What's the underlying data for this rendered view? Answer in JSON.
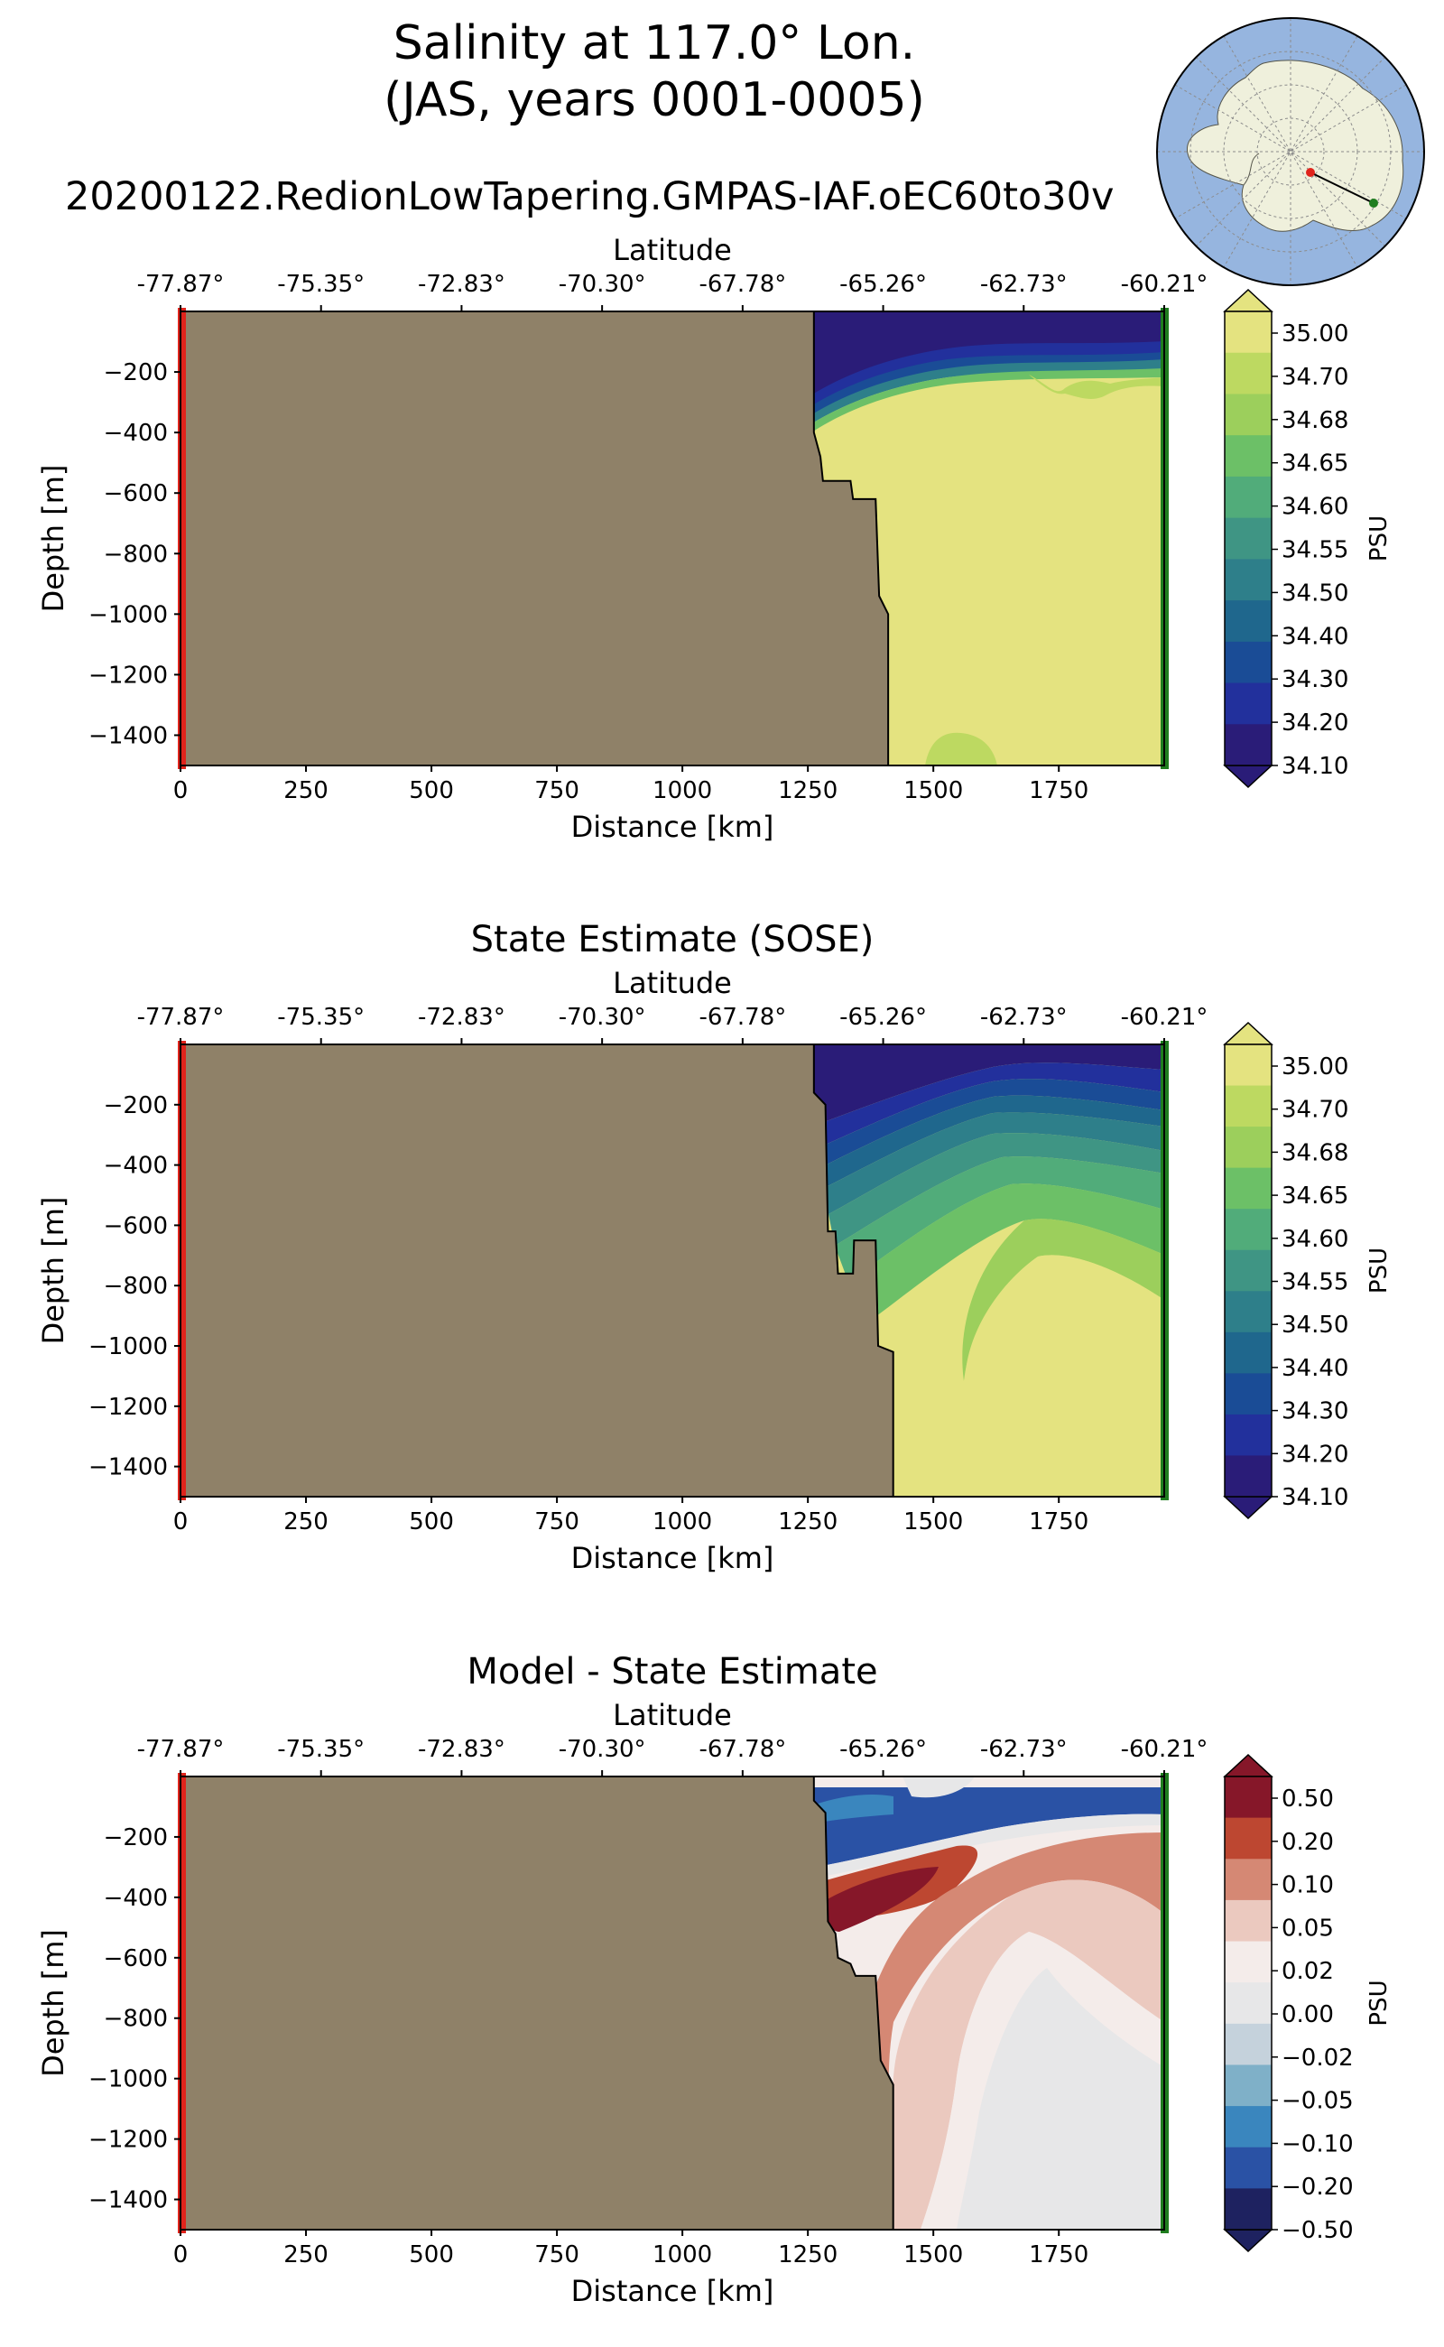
{
  "figure": {
    "title_line1": "Salinity at 117.0° Lon.",
    "title_line2": "(JAS, years 0001-0005)",
    "run_name": "20200122.RedionLowTapering.GMPAS-IAF.oEC60to30v"
  },
  "chart_data": [
    {
      "type": "heatmap",
      "title": "",
      "xlabel": "Distance [km]",
      "ylabel": "Depth [m]",
      "top_xlabel": "Latitude",
      "xlim": [
        0,
        1960
      ],
      "ylim": [
        -1500,
        0
      ],
      "x_ticks": [
        0,
        250,
        500,
        750,
        1000,
        1250,
        1500,
        1750
      ],
      "y_ticks": [
        -200,
        -400,
        -600,
        -800,
        -1000,
        -1200,
        -1400
      ],
      "lat_ticks": [
        "-77.87°",
        "-75.35°",
        "-72.83°",
        "-70.30°",
        "-67.78°",
        "-65.26°",
        "-62.73°",
        "-60.21°"
      ],
      "colorbar_label": "PSU",
      "colorbar_levels": [
        "35.00",
        "34.70",
        "34.68",
        "34.65",
        "34.60",
        "34.55",
        "34.50",
        "34.40",
        "34.30",
        "34.20",
        "34.10"
      ],
      "colorbar_colors": [
        "#e4e380",
        "#bdd961",
        "#9ccf5c",
        "#6cc067",
        "#51ac7a",
        "#3f9584",
        "#2e7f8a",
        "#1f678d",
        "#1a4c96",
        "#22309c",
        "#2a1c78"
      ],
      "land_color": "#8f8168",
      "coastline_km": [
        [
          1262,
          0
        ],
        [
          1262,
          -400
        ],
        [
          1275,
          -480
        ],
        [
          1280,
          -560
        ],
        [
          1335,
          -560
        ],
        [
          1340,
          -620
        ],
        [
          1385,
          -620
        ],
        [
          1392,
          -940
        ],
        [
          1410,
          -1000
        ],
        [
          1410,
          -1500
        ]
      ],
      "section_start_color": "#e0241c",
      "section_end_color": "#1f7d1f"
    },
    {
      "type": "heatmap",
      "title": "State Estimate (SOSE)",
      "xlabel": "Distance [km]",
      "ylabel": "Depth [m]",
      "top_xlabel": "Latitude",
      "xlim": [
        0,
        1960
      ],
      "ylim": [
        -1500,
        0
      ],
      "x_ticks": [
        0,
        250,
        500,
        750,
        1000,
        1250,
        1500,
        1750
      ],
      "y_ticks": [
        -200,
        -400,
        -600,
        -800,
        -1000,
        -1200,
        -1400
      ],
      "lat_ticks": [
        "-77.87°",
        "-75.35°",
        "-72.83°",
        "-70.30°",
        "-67.78°",
        "-65.26°",
        "-62.73°",
        "-60.21°"
      ],
      "colorbar_label": "PSU",
      "colorbar_levels": [
        "35.00",
        "34.70",
        "34.68",
        "34.65",
        "34.60",
        "34.55",
        "34.50",
        "34.40",
        "34.30",
        "34.20",
        "34.10"
      ],
      "colorbar_colors": [
        "#e4e380",
        "#bdd961",
        "#9ccf5c",
        "#6cc067",
        "#51ac7a",
        "#3f9584",
        "#2e7f8a",
        "#1f678d",
        "#1a4c96",
        "#22309c",
        "#2a1c78"
      ],
      "land_color": "#8f8168",
      "coastline_km": [
        [
          1262,
          0
        ],
        [
          1262,
          -160
        ],
        [
          1285,
          -200
        ],
        [
          1290,
          -620
        ],
        [
          1305,
          -620
        ],
        [
          1310,
          -760
        ],
        [
          1340,
          -760
        ],
        [
          1342,
          -650
        ],
        [
          1385,
          -650
        ],
        [
          1390,
          -1000
        ],
        [
          1420,
          -1020
        ],
        [
          1420,
          -1500
        ]
      ],
      "section_start_color": "#e0241c",
      "section_end_color": "#1f7d1f"
    },
    {
      "type": "heatmap",
      "title": "Model - State Estimate",
      "xlabel": "Distance [km]",
      "ylabel": "Depth [m]",
      "top_xlabel": "Latitude",
      "xlim": [
        0,
        1960
      ],
      "ylim": [
        -1500,
        0
      ],
      "x_ticks": [
        0,
        250,
        500,
        750,
        1000,
        1250,
        1500,
        1750
      ],
      "y_ticks": [
        -200,
        -400,
        -600,
        -800,
        -1000,
        -1200,
        -1400
      ],
      "lat_ticks": [
        "-77.87°",
        "-75.35°",
        "-72.83°",
        "-70.30°",
        "-67.78°",
        "-65.26°",
        "-62.73°",
        "-60.21°"
      ],
      "colorbar_label": "PSU",
      "colorbar_levels": [
        "0.50",
        "0.20",
        "0.10",
        "0.05",
        "0.02",
        "0.00",
        "−0.02",
        "−0.05",
        "−0.10",
        "−0.20",
        "−0.50"
      ],
      "colorbar_colors": [
        "#861729",
        "#bd4731",
        "#d58874",
        "#ebc9bf",
        "#f4ecea",
        "#e7e7e8",
        "#c5d2dc",
        "#7fb0c8",
        "#3a86be",
        "#2a52a5",
        "#1e2260"
      ],
      "land_color": "#8f8168",
      "coastline_km": [
        [
          1262,
          0
        ],
        [
          1262,
          -80
        ],
        [
          1285,
          -120
        ],
        [
          1290,
          -480
        ],
        [
          1305,
          -520
        ],
        [
          1310,
          -600
        ],
        [
          1335,
          -620
        ],
        [
          1345,
          -660
        ],
        [
          1385,
          -660
        ],
        [
          1395,
          -940
        ],
        [
          1420,
          -1020
        ],
        [
          1420,
          -1500
        ]
      ],
      "section_start_color": "#e0241c",
      "section_end_color": "#1f7d1f"
    }
  ],
  "inset_map": {
    "ocean_color": "#96b5df",
    "land_color": "#eff0dc",
    "start_marker_color": "#e0241c",
    "end_marker_color": "#1f7d1f"
  }
}
